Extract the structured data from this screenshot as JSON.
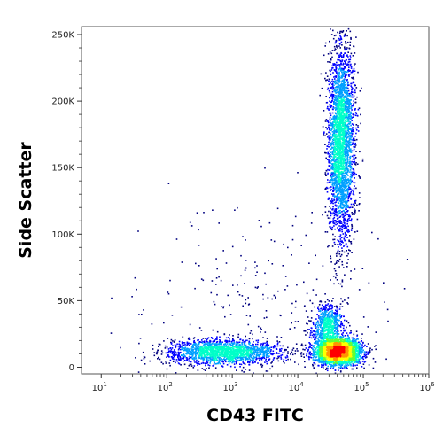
{
  "chart_data": {
    "type": "scatter",
    "title": "",
    "xlabel": "CD43 FITC",
    "ylabel": "Side Scatter",
    "x_scale": "log",
    "xlim": [
      5,
      1000000
    ],
    "ylim": [
      -5000,
      256000
    ],
    "grid": false,
    "legend": "none",
    "x_ticks": [
      {
        "base": "10",
        "exp": "1",
        "value": 10
      },
      {
        "base": "10",
        "exp": "2",
        "value": 100
      },
      {
        "base": "10",
        "exp": "3",
        "value": 1000
      },
      {
        "base": "10",
        "exp": "4",
        "value": 10000
      },
      {
        "base": "10",
        "exp": "5",
        "value": 100000
      },
      {
        "base": "10",
        "exp": "6",
        "value": 1000000
      }
    ],
    "y_ticks": [
      {
        "label": "0",
        "value": 0
      },
      {
        "label": "50K",
        "value": 50000
      },
      {
        "label": "100K",
        "value": 100000
      },
      {
        "label": "150K",
        "value": 150000
      },
      {
        "label": "200K",
        "value": 200000
      },
      {
        "label": "250K",
        "value": 250000
      }
    ],
    "density_colors": [
      "#00007f",
      "#0000ff",
      "#00a0ff",
      "#00ffc8",
      "#64ff32",
      "#ffff00",
      "#ff9600",
      "#ff0000"
    ],
    "populations": [
      {
        "x_center": 700,
        "x_spread_decades": 0.45,
        "y_center": 12000,
        "y_spread": 4500,
        "weight": 1800
      },
      {
        "x_center": 40000,
        "x_spread_decades": 0.18,
        "y_center": 12000,
        "y_spread": 5000,
        "weight": 2600
      },
      {
        "x_center": 28000,
        "x_spread_decades": 0.12,
        "y_center": 32000,
        "y_spread": 8000,
        "weight": 700
      },
      {
        "x_center": 45000,
        "x_spread_decades": 0.1,
        "y_center": 170000,
        "y_spread": 38000,
        "weight": 3000
      },
      {
        "x_center": 3000,
        "x_spread_decades": 1.0,
        "y_center": 40000,
        "y_spread": 40000,
        "weight": 300
      }
    ]
  }
}
